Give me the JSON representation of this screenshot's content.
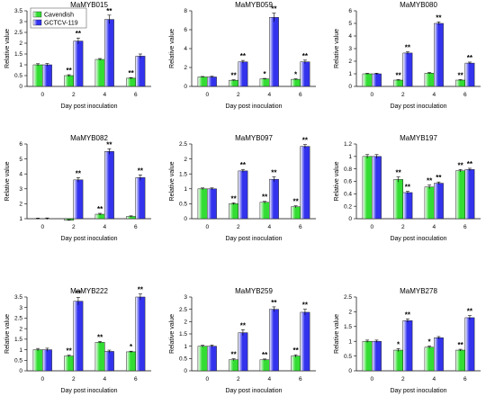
{
  "legend": {
    "series": [
      {
        "name": "Cavendish",
        "color": "#33dd33"
      },
      {
        "name": "GCTCV-119",
        "color": "#3333ee"
      }
    ],
    "location": "top-left of first panel"
  },
  "colors": {
    "green": "#33dd33",
    "blue": "#3333ee"
  },
  "chart_data": [
    {
      "type": "bar",
      "title": "MaMYB015",
      "xlabel": "Day post inoculation",
      "ylabel": "Relative value",
      "categories": [
        "0",
        "2",
        "4",
        "6"
      ],
      "ylim": [
        0,
        3.5
      ],
      "yticks": [
        "0",
        "0.5",
        "1",
        "1.5",
        "2",
        "2.5",
        "3",
        "3.5"
      ],
      "series": [
        {
          "name": "Cavendish",
          "values": [
            1.0,
            0.5,
            1.25,
            0.38
          ],
          "errors": [
            0.05,
            0.04,
            0.04,
            0.03
          ],
          "significance": [
            "",
            "**",
            "",
            "**"
          ]
        },
        {
          "name": "GCTCV-119",
          "values": [
            1.0,
            2.1,
            3.1,
            1.4
          ],
          "errors": [
            0.06,
            0.14,
            0.2,
            0.1
          ],
          "significance": [
            "",
            "**",
            "**",
            ""
          ]
        }
      ]
    },
    {
      "type": "bar",
      "title": "MaMYB059",
      "xlabel": "Day post inoculation",
      "ylabel": "Relative value",
      "categories": [
        "0",
        "2",
        "4",
        "6"
      ],
      "ylim": [
        0,
        8
      ],
      "yticks": [
        "0",
        "2",
        "4",
        "6",
        "8"
      ],
      "series": [
        {
          "name": "Cavendish",
          "values": [
            1.0,
            0.65,
            0.8,
            0.75
          ],
          "errors": [
            0.05,
            0.05,
            0.05,
            0.05
          ],
          "significance": [
            "",
            "**",
            "*",
            "*"
          ]
        },
        {
          "name": "GCTCV-119",
          "values": [
            1.0,
            2.6,
            7.3,
            2.6
          ],
          "errors": [
            0.07,
            0.15,
            0.45,
            0.18
          ],
          "significance": [
            "",
            "**",
            "**",
            "**"
          ]
        }
      ]
    },
    {
      "type": "bar",
      "title": "MaMYB080",
      "xlabel": "Day post inoculation",
      "ylabel": "Relative value",
      "categories": [
        "0",
        "2",
        "4",
        "6"
      ],
      "ylim": [
        0,
        6
      ],
      "yticks": [
        "0",
        "1",
        "2",
        "3",
        "4",
        "5",
        "6"
      ],
      "series": [
        {
          "name": "Cavendish",
          "values": [
            1.0,
            0.5,
            1.05,
            0.5
          ],
          "errors": [
            0.04,
            0.04,
            0.05,
            0.04
          ],
          "significance": [
            "",
            "**",
            "",
            "**"
          ]
        },
        {
          "name": "GCTCV-119",
          "values": [
            1.0,
            2.65,
            5.0,
            1.85
          ],
          "errors": [
            0.05,
            0.1,
            0.12,
            0.08
          ],
          "significance": [
            "",
            "**",
            "**",
            "**"
          ]
        }
      ]
    },
    {
      "type": "bar",
      "title": "MaMYB082",
      "xlabel": "Day post inoculation",
      "ylabel": "Relative value",
      "categories": [
        "0",
        "2",
        "4",
        "6"
      ],
      "ylim": [
        1,
        6
      ],
      "yticks": [
        "1",
        "2",
        "3",
        "4",
        "5",
        "6"
      ],
      "series": [
        {
          "name": "Cavendish",
          "values": [
            1.0,
            0.9,
            1.3,
            1.15
          ],
          "errors": [
            0.04,
            0.03,
            0.06,
            0.04
          ],
          "significance": [
            "",
            "",
            "**",
            ""
          ]
        },
        {
          "name": "GCTCV-119",
          "values": [
            1.0,
            3.6,
            5.5,
            3.75
          ],
          "errors": [
            0.05,
            0.15,
            0.18,
            0.18
          ],
          "significance": [
            "",
            "**",
            "**",
            "**"
          ]
        }
      ]
    },
    {
      "type": "bar",
      "title": "MaMYB097",
      "xlabel": "Day post inoculation",
      "ylabel": "Relative value",
      "categories": [
        "0",
        "2",
        "4",
        "6"
      ],
      "ylim": [
        0,
        2.5
      ],
      "yticks": [
        "0",
        "0.5",
        "1",
        "1.5",
        "2",
        "2.5"
      ],
      "series": [
        {
          "name": "Cavendish",
          "values": [
            1.0,
            0.5,
            0.55,
            0.4
          ],
          "errors": [
            0.03,
            0.03,
            0.03,
            0.03
          ],
          "significance": [
            "",
            "**",
            "**",
            "**"
          ]
        },
        {
          "name": "GCTCV-119",
          "values": [
            1.0,
            1.6,
            1.32,
            2.42
          ],
          "errors": [
            0.03,
            0.05,
            0.08,
            0.06
          ],
          "significance": [
            "",
            "**",
            "**",
            "**"
          ]
        }
      ]
    },
    {
      "type": "bar",
      "title": "MaMYB197",
      "xlabel": "Day post inoculation",
      "ylabel": "Relative value",
      "categories": [
        "0",
        "2",
        "4",
        "6"
      ],
      "ylim": [
        0,
        1.2
      ],
      "yticks": [
        "0",
        "0.2",
        "0.4",
        "0.6",
        "0.8",
        "1",
        "1.2"
      ],
      "series": [
        {
          "name": "Cavendish",
          "values": [
            1.0,
            0.63,
            0.51,
            0.77
          ],
          "errors": [
            0.03,
            0.04,
            0.03,
            0.02
          ],
          "significance": [
            "",
            "**",
            "**",
            "**"
          ]
        },
        {
          "name": "GCTCV-119",
          "values": [
            1.0,
            0.42,
            0.57,
            0.79
          ],
          "errors": [
            0.03,
            0.02,
            0.02,
            0.02
          ],
          "significance": [
            "",
            "**",
            "**",
            "**"
          ]
        }
      ]
    },
    {
      "type": "bar",
      "title": "MaMYB222",
      "xlabel": "Day post inoculation",
      "ylabel": "Relative value",
      "categories": [
        "0",
        "2",
        "4",
        "6"
      ],
      "ylim": [
        0,
        3.5
      ],
      "yticks": [
        "0",
        "0.5",
        "1",
        "1.5",
        "2",
        "2.5",
        "3",
        "3.5"
      ],
      "series": [
        {
          "name": "Cavendish",
          "values": [
            1.0,
            0.7,
            1.35,
            0.9
          ],
          "errors": [
            0.06,
            0.04,
            0.04,
            0.03
          ],
          "significance": [
            "",
            "**",
            "**",
            "*"
          ]
        },
        {
          "name": "GCTCV-119",
          "values": [
            1.0,
            3.3,
            0.92,
            3.5
          ],
          "errors": [
            0.07,
            0.18,
            0.06,
            0.14
          ],
          "significance": [
            "",
            "**",
            "",
            "**"
          ]
        }
      ]
    },
    {
      "type": "bar",
      "title": "MaMYB259",
      "xlabel": "Day post inoculation",
      "ylabel": "Relative value",
      "categories": [
        "0",
        "2",
        "4",
        "6"
      ],
      "ylim": [
        0,
        3
      ],
      "yticks": [
        "0",
        "0.5",
        "1",
        "1.5",
        "2",
        "2.5",
        "3"
      ],
      "series": [
        {
          "name": "Cavendish",
          "values": [
            1.0,
            0.45,
            0.45,
            0.6
          ],
          "errors": [
            0.04,
            0.04,
            0.03,
            0.05
          ],
          "significance": [
            "",
            "**",
            "**",
            "**"
          ]
        },
        {
          "name": "GCTCV-119",
          "values": [
            1.0,
            1.55,
            2.5,
            2.38
          ],
          "errors": [
            0.05,
            0.12,
            0.1,
            0.12
          ],
          "significance": [
            "",
            "**",
            "**",
            "**"
          ]
        }
      ]
    },
    {
      "type": "bar",
      "title": "MaMYB278",
      "xlabel": "Day post inoculation",
      "ylabel": "Relative value",
      "categories": [
        "0",
        "2",
        "4",
        "6"
      ],
      "ylim": [
        0,
        2.5
      ],
      "yticks": [
        "0",
        "0.5",
        "1",
        "1.5",
        "2",
        "2.5"
      ],
      "series": [
        {
          "name": "Cavendish",
          "values": [
            1.0,
            0.7,
            0.8,
            0.7
          ],
          "errors": [
            0.04,
            0.05,
            0.04,
            0.03
          ],
          "significance": [
            "",
            "*",
            "*",
            "**"
          ]
        },
        {
          "name": "GCTCV-119",
          "values": [
            1.0,
            1.7,
            1.12,
            1.8
          ],
          "errors": [
            0.04,
            0.06,
            0.04,
            0.07
          ],
          "significance": [
            "",
            "**",
            "",
            "**"
          ]
        }
      ]
    }
  ]
}
